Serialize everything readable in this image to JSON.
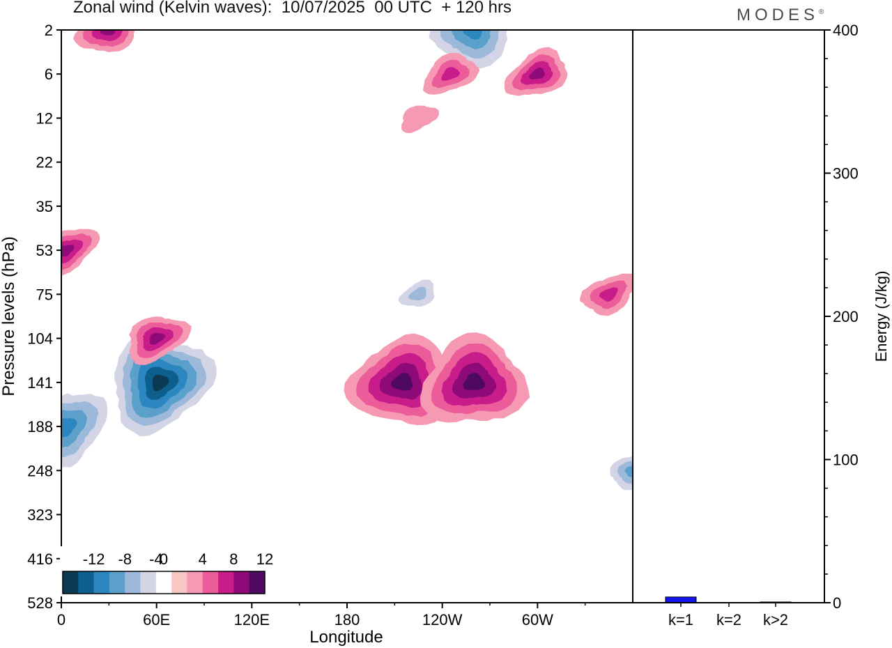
{
  "title": "Zonal wind (Kelvin waves):  10/07/2025  00 UTC  + 120 hrs",
  "brand": "MODES",
  "brand_mark": "®",
  "chart_data": [
    {
      "type": "heatmap",
      "xlabel": "Longitude",
      "ylabel": "Pressure levels (hPa)",
      "x_ticks": [
        "0",
        "60E",
        "120E",
        "180",
        "120W",
        "60W"
      ],
      "x_tick_values": [
        0,
        60,
        120,
        180,
        240,
        300
      ],
      "xlim": [
        0,
        360
      ],
      "y_ticks": [
        "2",
        "6",
        "12",
        "22",
        "35",
        "53",
        "75",
        "104",
        "141",
        "188",
        "248",
        "323",
        "416",
        "528"
      ],
      "y_scale": "level index (evenly spaced levels)",
      "colorbar": {
        "labels": [
          "-12",
          "-8",
          "-4",
          "0",
          "4",
          "8",
          "12"
        ],
        "levels": [
          -14,
          -12,
          -10,
          -8,
          -6,
          -4,
          -2,
          2,
          4,
          6,
          8,
          10,
          12,
          14
        ],
        "colors": [
          "#0c3a52",
          "#0d5f8e",
          "#2c86bf",
          "#5b9fcb",
          "#9cb9d9",
          "#d3d5e6",
          "#ffffff",
          "#f9c7c3",
          "#f59ab2",
          "#ec5c9b",
          "#c71c8a",
          "#8e0a78",
          "#4f0a5f"
        ]
      },
      "features": [
        {
          "sign": "negative",
          "lon": 62,
          "level": 141,
          "peak": -14
        },
        {
          "sign": "negative",
          "lon": 3,
          "level": 188,
          "peak": -10
        },
        {
          "sign": "negative",
          "lon": 360,
          "level": 248,
          "peak": -8
        },
        {
          "sign": "negative",
          "lon": 260,
          "level": 2,
          "peak": -10
        },
        {
          "sign": "negative",
          "lon": 225,
          "level": 75,
          "peak": -6
        },
        {
          "sign": "positive",
          "lon": 215,
          "level": 141,
          "peak": 10
        },
        {
          "sign": "positive",
          "lon": 260,
          "level": 141,
          "peak": 10
        },
        {
          "sign": "positive",
          "lon": 60,
          "level": 104,
          "peak": 8
        },
        {
          "sign": "positive",
          "lon": 3,
          "level": 53,
          "peak": 8
        },
        {
          "sign": "positive",
          "lon": 345,
          "level": 75,
          "peak": 6
        },
        {
          "sign": "positive",
          "lon": 30,
          "level": 2,
          "peak": 8
        },
        {
          "sign": "positive",
          "lon": 300,
          "level": 6,
          "peak": 8
        },
        {
          "sign": "positive",
          "lon": 245,
          "level": 6,
          "peak": 6
        },
        {
          "sign": "positive",
          "lon": 225,
          "level": 12,
          "peak": 2
        }
      ]
    },
    {
      "type": "bar",
      "ylabel": "Energy (J/kg)",
      "ylim": [
        0,
        400
      ],
      "y_ticks": [
        "0",
        "100",
        "200",
        "300",
        "400"
      ],
      "categories": [
        "k=1",
        "k=2",
        "k>2"
      ],
      "values": [
        4,
        0,
        0.5
      ],
      "colors": [
        "#1414ee",
        "#1414ee",
        "#1414ee"
      ]
    }
  ]
}
